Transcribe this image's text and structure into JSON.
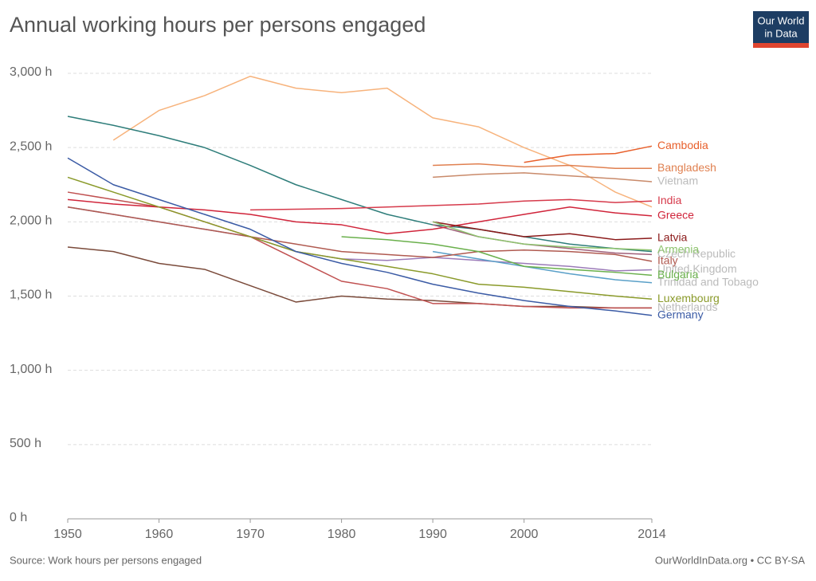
{
  "chart_data": {
    "type": "line",
    "title": "Annual working hours per persons engaged",
    "logo": [
      "Our World",
      "in Data"
    ],
    "source": "Source: Work hours per persons engaged",
    "credit": "OurWorldInData.org • CC BY-SA",
    "grid": true,
    "xlim": [
      1950,
      2014
    ],
    "ylim": [
      0,
      3000
    ],
    "xticks": [
      1950,
      1960,
      1970,
      1980,
      1990,
      2000,
      2014
    ],
    "yticks": [
      {
        "value": 0,
        "label": "0 h"
      },
      {
        "value": 500,
        "label": "500 h"
      },
      {
        "value": 1000,
        "label": "1,000 h"
      },
      {
        "value": 1500,
        "label": "1,500 h"
      },
      {
        "value": 2000,
        "label": "2,000 h"
      },
      {
        "value": 2500,
        "label": "2,500 h"
      },
      {
        "value": 3000,
        "label": "3,000 h"
      }
    ],
    "x": [
      1950,
      1955,
      1960,
      1965,
      1970,
      1975,
      1980,
      1985,
      1990,
      1995,
      2000,
      2005,
      2010,
      2014
    ],
    "series": [
      {
        "color": "#f7b37c",
        "values": [
          null,
          2550,
          2750,
          2850,
          2980,
          2900,
          2870,
          2900,
          2700,
          2640,
          2500,
          2380,
          2200,
          2100
        ]
      },
      {
        "color": "#2e7d7a",
        "values": [
          2710,
          2650,
          2580,
          2500,
          2380,
          2250,
          2150,
          2050,
          1980,
          1950,
          1900,
          1850,
          1820,
          1800
        ]
      },
      {
        "color": "#7a4a3a",
        "values": [
          1830,
          1800,
          1720,
          1680,
          1570,
          1460,
          1500,
          1480,
          1470,
          1450,
          1430,
          1430,
          1420,
          1420
        ]
      },
      {
        "name": "Vietnam",
        "color": "#c98a6a",
        "label_color": "#bbbbbb",
        "values": [
          null,
          null,
          null,
          null,
          null,
          null,
          null,
          null,
          2300,
          2320,
          2330,
          2310,
          2290,
          2270
        ]
      },
      {
        "name": "Czech Republic",
        "color": "#a0607a",
        "label_color": "#bbbbbb",
        "values": [
          null,
          null,
          null,
          null,
          null,
          null,
          null,
          null,
          1980,
          1900,
          1850,
          1820,
          1790,
          1780
        ]
      },
      {
        "name": "United Kingdom",
        "color": "#9b7bb8",
        "label_color": "#bbbbbb",
        "values": [
          2100,
          2050,
          2000,
          1950,
          1900,
          1800,
          1750,
          1740,
          1760,
          1740,
          1720,
          1700,
          1670,
          1677
        ]
      },
      {
        "name": "Trinidad and Tobago",
        "color": "#5aa0c8",
        "label_color": "#bbbbbb",
        "values": [
          null,
          null,
          null,
          null,
          null,
          null,
          null,
          null,
          1800,
          1750,
          1700,
          1650,
          1610,
          1590
        ]
      },
      {
        "name": "Netherlands",
        "color": "#c05050",
        "label_color": "#bbbbbb",
        "values": [
          2200,
          2150,
          2100,
          2000,
          1900,
          1750,
          1600,
          1550,
          1450,
          1450,
          1430,
          1420,
          1420,
          1420
        ]
      },
      {
        "name": "Cambodia",
        "color": "#e8602c",
        "values": [
          null,
          null,
          null,
          null,
          null,
          null,
          null,
          null,
          null,
          null,
          2400,
          2450,
          2460,
          2510
        ]
      },
      {
        "name": "Bangladesh",
        "color": "#e08050",
        "values": [
          null,
          null,
          null,
          null,
          null,
          null,
          null,
          null,
          2380,
          2390,
          2370,
          2380,
          2360,
          2360
        ]
      },
      {
        "name": "India",
        "color": "#d63a4b",
        "values": [
          null,
          null,
          null,
          null,
          2080,
          2085,
          2090,
          2100,
          2110,
          2120,
          2140,
          2150,
          2130,
          2140
        ]
      },
      {
        "name": "Greece",
        "color": "#d0243a",
        "values": [
          2150,
          2120,
          2100,
          2080,
          2050,
          2000,
          1980,
          1920,
          1950,
          2000,
          2050,
          2100,
          2060,
          2040
        ]
      },
      {
        "name": "Latvia",
        "color": "#8b1a1a",
        "values": [
          null,
          null,
          null,
          null,
          null,
          null,
          null,
          null,
          2000,
          1950,
          1900,
          1920,
          1880,
          1890
        ]
      },
      {
        "name": "Armenia",
        "color": "#8dc36d",
        "values": [
          null,
          null,
          null,
          null,
          null,
          null,
          null,
          null,
          2000,
          1900,
          1850,
          1830,
          1820,
          1810
        ]
      },
      {
        "name": "Italy",
        "color": "#b05a50",
        "values": [
          2100,
          2050,
          2000,
          1950,
          1900,
          1850,
          1800,
          1780,
          1760,
          1800,
          1810,
          1800,
          1780,
          1734
        ]
      },
      {
        "name": "Bulgaria",
        "color": "#6ab04c",
        "values": [
          null,
          null,
          null,
          null,
          null,
          null,
          1900,
          1880,
          1850,
          1800,
          1700,
          1680,
          1660,
          1640
        ]
      },
      {
        "name": "Luxembourg",
        "color": "#8a9a2a",
        "values": [
          2300,
          2200,
          2100,
          2000,
          1900,
          1800,
          1750,
          1700,
          1650,
          1580,
          1560,
          1530,
          1500,
          1480
        ]
      },
      {
        "name": "Germany",
        "color": "#3b5ba5",
        "values": [
          2430,
          2250,
          2150,
          2050,
          1950,
          1800,
          1720,
          1660,
          1580,
          1520,
          1470,
          1430,
          1400,
          1370
        ]
      }
    ]
  }
}
